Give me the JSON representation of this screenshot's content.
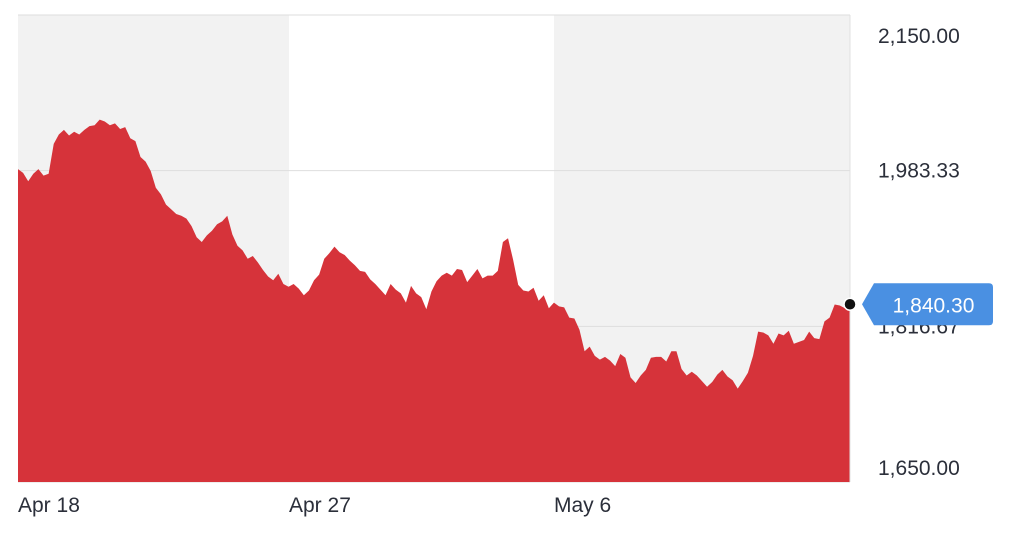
{
  "chart_data": {
    "type": "area",
    "x_tick_labels": [
      "Apr 18",
      "Apr 27",
      "May 6"
    ],
    "y_tick_labels": [
      "2,150.00",
      "1,983.33",
      "1,816.67",
      "1,650.00"
    ],
    "ylim": [
      1650,
      2150
    ],
    "grid": true,
    "current_value": 1840.3,
    "current_label": "1,840.30",
    "series": [
      {
        "values": [
          1985,
          1981,
          1972,
          1980,
          1985,
          1978,
          1980,
          2012,
          2022,
          2027,
          2021,
          2025,
          2022,
          2027,
          2031,
          2032,
          2038,
          2036,
          2032,
          2034,
          2028,
          2030,
          2018,
          2015,
          1998,
          1993,
          1983,
          1965,
          1958,
          1947,
          1942,
          1937,
          1935,
          1932,
          1924,
          1912,
          1907,
          1914,
          1919,
          1926,
          1929,
          1935,
          1915,
          1903,
          1898,
          1889,
          1892,
          1885,
          1877,
          1870,
          1866,
          1873,
          1862,
          1859,
          1862,
          1857,
          1850,
          1855,
          1866,
          1872,
          1889,
          1895,
          1902,
          1896,
          1893,
          1887,
          1882,
          1876,
          1875,
          1867,
          1862,
          1856,
          1850,
          1862,
          1856,
          1852,
          1842,
          1860,
          1852,
          1848,
          1835,
          1854,
          1865,
          1871,
          1874,
          1871,
          1878,
          1877,
          1864,
          1871,
          1878,
          1868,
          1871,
          1871,
          1876,
          1907,
          1911,
          1888,
          1861,
          1855,
          1854,
          1858,
          1844,
          1850,
          1836,
          1842,
          1838,
          1837,
          1826,
          1825,
          1813,
          1790,
          1795,
          1785,
          1781,
          1784,
          1780,
          1774,
          1787,
          1783,
          1762,
          1756,
          1764,
          1770,
          1783,
          1784,
          1784,
          1779,
          1790,
          1790,
          1771,
          1764,
          1768,
          1764,
          1758,
          1752,
          1757,
          1765,
          1770,
          1763,
          1759,
          1750,
          1758,
          1767,
          1785,
          1811,
          1810,
          1807,
          1798,
          1809,
          1807,
          1812,
          1798,
          1800,
          1802,
          1811,
          1804,
          1803,
          1822,
          1826,
          1840,
          1839,
          1836,
          1840
        ]
      }
    ]
  }
}
